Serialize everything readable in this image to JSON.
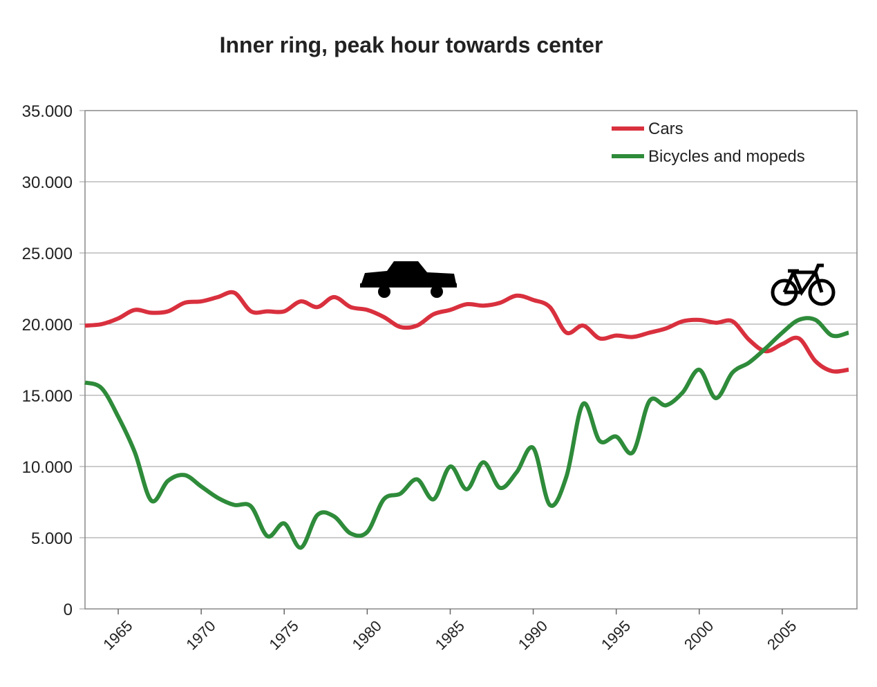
{
  "chart_data": {
    "type": "line",
    "title": "Inner ring, peak hour towards center",
    "x": [
      1963,
      1964,
      1965,
      1966,
      1967,
      1968,
      1969,
      1970,
      1971,
      1972,
      1973,
      1974,
      1975,
      1976,
      1977,
      1978,
      1979,
      1980,
      1981,
      1982,
      1983,
      1984,
      1985,
      1986,
      1987,
      1988,
      1989,
      1990,
      1991,
      1992,
      1993,
      1994,
      1995,
      1996,
      1997,
      1998,
      1999,
      2000,
      2001,
      2002,
      2003,
      2004,
      2005,
      2006,
      2007,
      2008,
      2009
    ],
    "series": [
      {
        "name": "Cars",
        "color": "#d9303e",
        "values": [
          19900,
          20000,
          20400,
          21000,
          20800,
          20900,
          21500,
          21600,
          21900,
          22200,
          20900,
          20900,
          20900,
          21600,
          21200,
          21900,
          21200,
          21000,
          20500,
          19800,
          19900,
          20700,
          21000,
          21400,
          21300,
          21500,
          22000,
          21700,
          21200,
          19400,
          19900,
          19000,
          19200,
          19100,
          19400,
          19700,
          20200,
          20300,
          20100,
          20200,
          18900,
          18100,
          18600,
          19000,
          17400,
          16700,
          16800
        ]
      },
      {
        "name": "Bicycles and mopeds",
        "color": "#2e8b3a",
        "values": [
          15900,
          15500,
          13500,
          11000,
          7600,
          9000,
          9400,
          8600,
          7800,
          7300,
          7200,
          5100,
          6000,
          4300,
          6600,
          6500,
          5300,
          5400,
          7700,
          8100,
          9100,
          7700,
          10000,
          8400,
          10300,
          8500,
          9600,
          11300,
          7300,
          9300,
          14400,
          11800,
          12100,
          11000,
          14600,
          14300,
          15200,
          16800,
          14800,
          16600,
          17300,
          18300,
          19400,
          20300,
          20300,
          19200,
          19400
        ]
      }
    ],
    "xlim": [
      1963,
      2009.5
    ],
    "xticks": [
      1965,
      1970,
      1975,
      1980,
      1985,
      1990,
      1995,
      2000,
      2005
    ],
    "ylim": [
      0,
      35000
    ],
    "yticks": [
      0,
      {
        "value": 5000,
        "label": "5.000"
      },
      {
        "value": 10000,
        "label": "10.000"
      },
      {
        "value": 15000,
        "label": "15.000"
      },
      {
        "value": 20000,
        "label": "20.000"
      },
      {
        "value": 25000,
        "label": "25.000"
      },
      {
        "value": 30000,
        "label": "30.000"
      },
      {
        "value": 35000,
        "label": "35.000"
      }
    ],
    "grid": true,
    "legend": "upper right"
  }
}
